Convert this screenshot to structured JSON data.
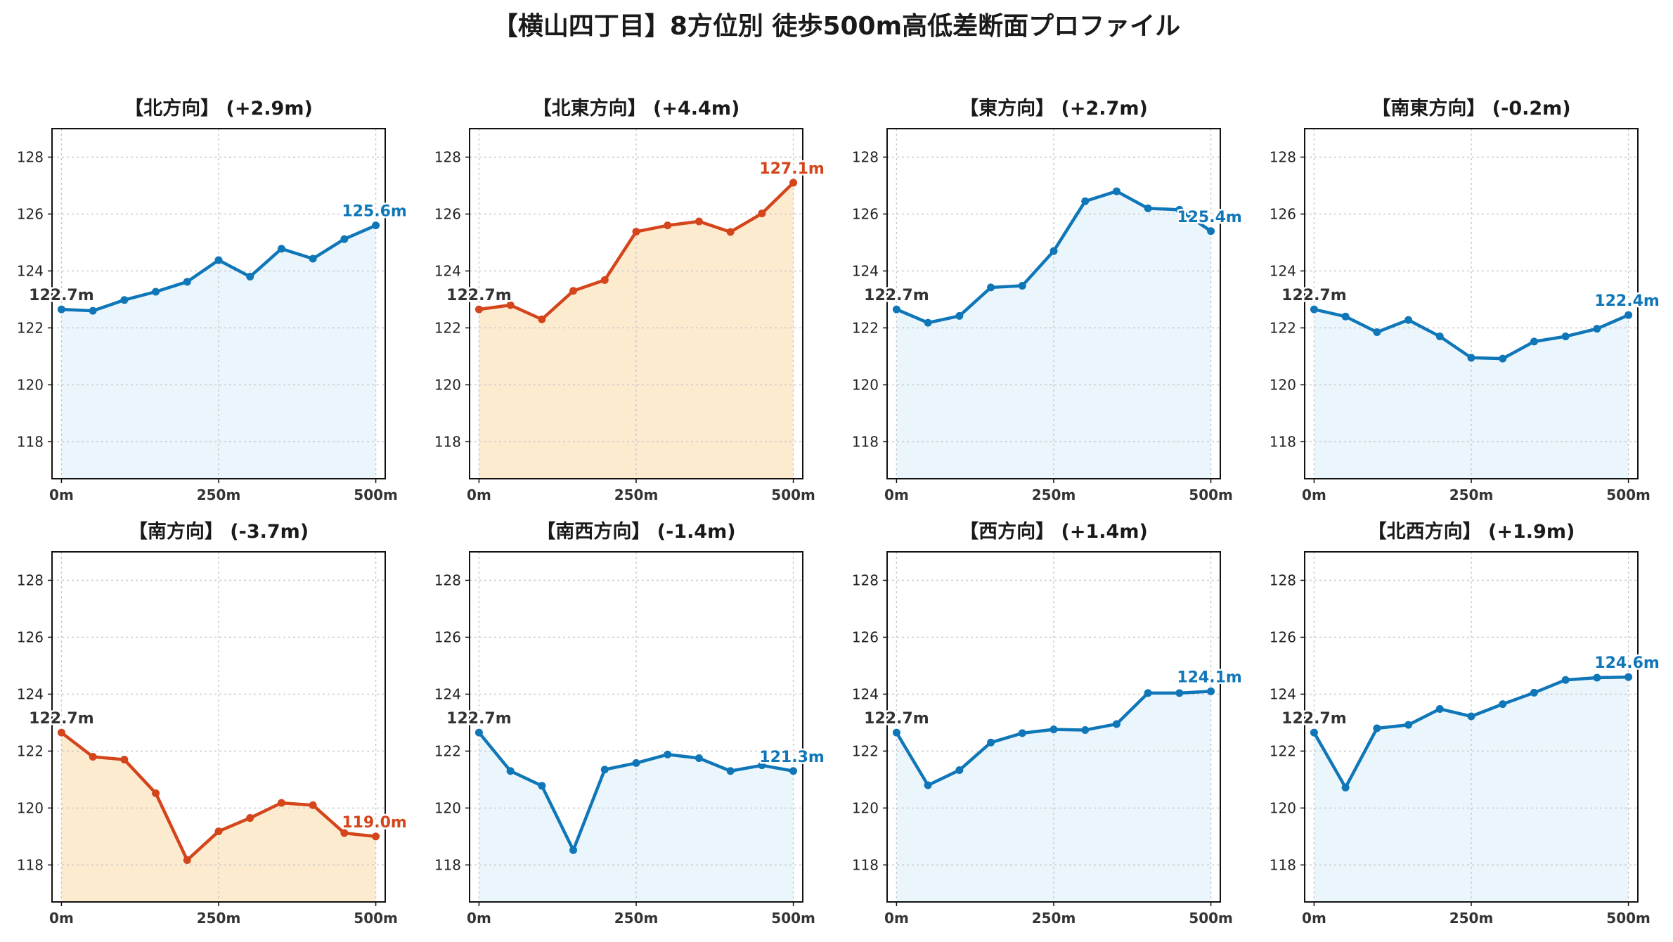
{
  "title": "【横山四丁目】8方位別 徒歩500m高低差断面プロファイル",
  "colors": {
    "rise": "#0f76b8",
    "fall": "#d4451b",
    "rise_fill": "#eaf6fc",
    "fall_fill": "#fdebd0",
    "start_label": "#333333",
    "grid": "#c8c8c8"
  },
  "chart_data": [
    {
      "type": "area",
      "title": "【北方向】 (+2.9m)",
      "x": [
        0,
        50,
        100,
        150,
        200,
        250,
        300,
        350,
        400,
        450,
        500
      ],
      "values": [
        122.65,
        122.6,
        122.98,
        123.27,
        123.62,
        124.38,
        123.8,
        124.78,
        124.43,
        125.12,
        125.6
      ],
      "x_ticks": [
        "0m",
        "250m",
        "500m"
      ],
      "y_ticks": [
        118,
        120,
        122,
        124,
        126,
        128
      ],
      "ylim": [
        116.7,
        129
      ],
      "xlim": [
        -15,
        515
      ],
      "start_label": "122.7m",
      "end_label": "125.6m",
      "color": "blue",
      "grid": true
    },
    {
      "type": "area",
      "title": "【北東方向】 (+4.4m)",
      "x": [
        0,
        50,
        100,
        150,
        200,
        250,
        300,
        350,
        400,
        450,
        500
      ],
      "values": [
        122.65,
        122.8,
        122.3,
        123.3,
        123.68,
        125.38,
        125.6,
        125.74,
        125.37,
        126.02,
        127.1
      ],
      "x_ticks": [
        "0m",
        "250m",
        "500m"
      ],
      "y_ticks": [
        118,
        120,
        122,
        124,
        126,
        128
      ],
      "ylim": [
        116.7,
        129
      ],
      "xlim": [
        -15,
        515
      ],
      "start_label": "122.7m",
      "end_label": "127.1m",
      "color": "orange",
      "grid": true
    },
    {
      "type": "area",
      "title": "【東方向】 (+2.7m)",
      "x": [
        0,
        50,
        100,
        150,
        200,
        250,
        300,
        350,
        400,
        450,
        500
      ],
      "values": [
        122.65,
        122.18,
        122.42,
        123.42,
        123.48,
        124.7,
        126.45,
        126.8,
        126.2,
        126.15,
        125.4
      ],
      "x_ticks": [
        "0m",
        "250m",
        "500m"
      ],
      "y_ticks": [
        118,
        120,
        122,
        124,
        126,
        128
      ],
      "ylim": [
        116.7,
        129
      ],
      "xlim": [
        -15,
        515
      ],
      "start_label": "122.7m",
      "end_label": "125.4m",
      "color": "blue",
      "grid": true
    },
    {
      "type": "area",
      "title": "【南東方向】 (-0.2m)",
      "x": [
        0,
        50,
        100,
        150,
        200,
        250,
        300,
        350,
        400,
        450,
        500
      ],
      "values": [
        122.65,
        122.4,
        121.85,
        122.28,
        121.7,
        120.95,
        120.92,
        121.52,
        121.7,
        121.97,
        122.45
      ],
      "x_ticks": [
        "0m",
        "250m",
        "500m"
      ],
      "y_ticks": [
        118,
        120,
        122,
        124,
        126,
        128
      ],
      "ylim": [
        116.7,
        129
      ],
      "xlim": [
        -15,
        515
      ],
      "start_label": "122.7m",
      "end_label": "122.4m",
      "color": "blue",
      "grid": true
    },
    {
      "type": "area",
      "title": "【南方向】 (-3.7m)",
      "x": [
        0,
        50,
        100,
        150,
        200,
        250,
        300,
        350,
        400,
        450,
        500
      ],
      "values": [
        122.65,
        121.8,
        121.7,
        120.52,
        118.17,
        119.18,
        119.65,
        120.18,
        120.1,
        119.12,
        119.0
      ],
      "x_ticks": [
        "0m",
        "250m",
        "500m"
      ],
      "y_ticks": [
        118,
        120,
        122,
        124,
        126,
        128
      ],
      "ylim": [
        116.7,
        129
      ],
      "xlim": [
        -15,
        515
      ],
      "start_label": "122.7m",
      "end_label": "119.0m",
      "color": "orange",
      "grid": true
    },
    {
      "type": "area",
      "title": "【南西方向】 (-1.4m)",
      "x": [
        0,
        50,
        100,
        150,
        200,
        250,
        300,
        350,
        400,
        450,
        500
      ],
      "values": [
        122.65,
        121.3,
        120.78,
        118.52,
        121.35,
        121.58,
        121.88,
        121.75,
        121.3,
        121.5,
        121.3
      ],
      "x_ticks": [
        "0m",
        "250m",
        "500m"
      ],
      "y_ticks": [
        118,
        120,
        122,
        124,
        126,
        128
      ],
      "ylim": [
        116.7,
        129
      ],
      "xlim": [
        -15,
        515
      ],
      "start_label": "122.7m",
      "end_label": "121.3m",
      "color": "blue",
      "grid": true
    },
    {
      "type": "area",
      "title": "【西方向】 (+1.4m)",
      "x": [
        0,
        50,
        100,
        150,
        200,
        250,
        300,
        350,
        400,
        450,
        500
      ],
      "values": [
        122.65,
        120.8,
        121.33,
        122.3,
        122.63,
        122.76,
        122.74,
        122.95,
        124.04,
        124.04,
        124.1
      ],
      "x_ticks": [
        "0m",
        "250m",
        "500m"
      ],
      "y_ticks": [
        118,
        120,
        122,
        124,
        126,
        128
      ],
      "ylim": [
        116.7,
        129
      ],
      "xlim": [
        -15,
        515
      ],
      "start_label": "122.7m",
      "end_label": "124.1m",
      "color": "blue",
      "grid": true
    },
    {
      "type": "area",
      "title": "【北西方向】 (+1.9m)",
      "x": [
        0,
        50,
        100,
        150,
        200,
        250,
        300,
        350,
        400,
        450,
        500
      ],
      "values": [
        122.65,
        120.72,
        122.8,
        122.92,
        123.48,
        123.22,
        123.65,
        124.05,
        124.5,
        124.58,
        124.6
      ],
      "x_ticks": [
        "0m",
        "250m",
        "500m"
      ],
      "y_ticks": [
        118,
        120,
        122,
        124,
        126,
        128
      ],
      "ylim": [
        116.7,
        129
      ],
      "xlim": [
        -15,
        515
      ],
      "start_label": "122.7m",
      "end_label": "124.6m",
      "color": "blue",
      "grid": true
    }
  ]
}
